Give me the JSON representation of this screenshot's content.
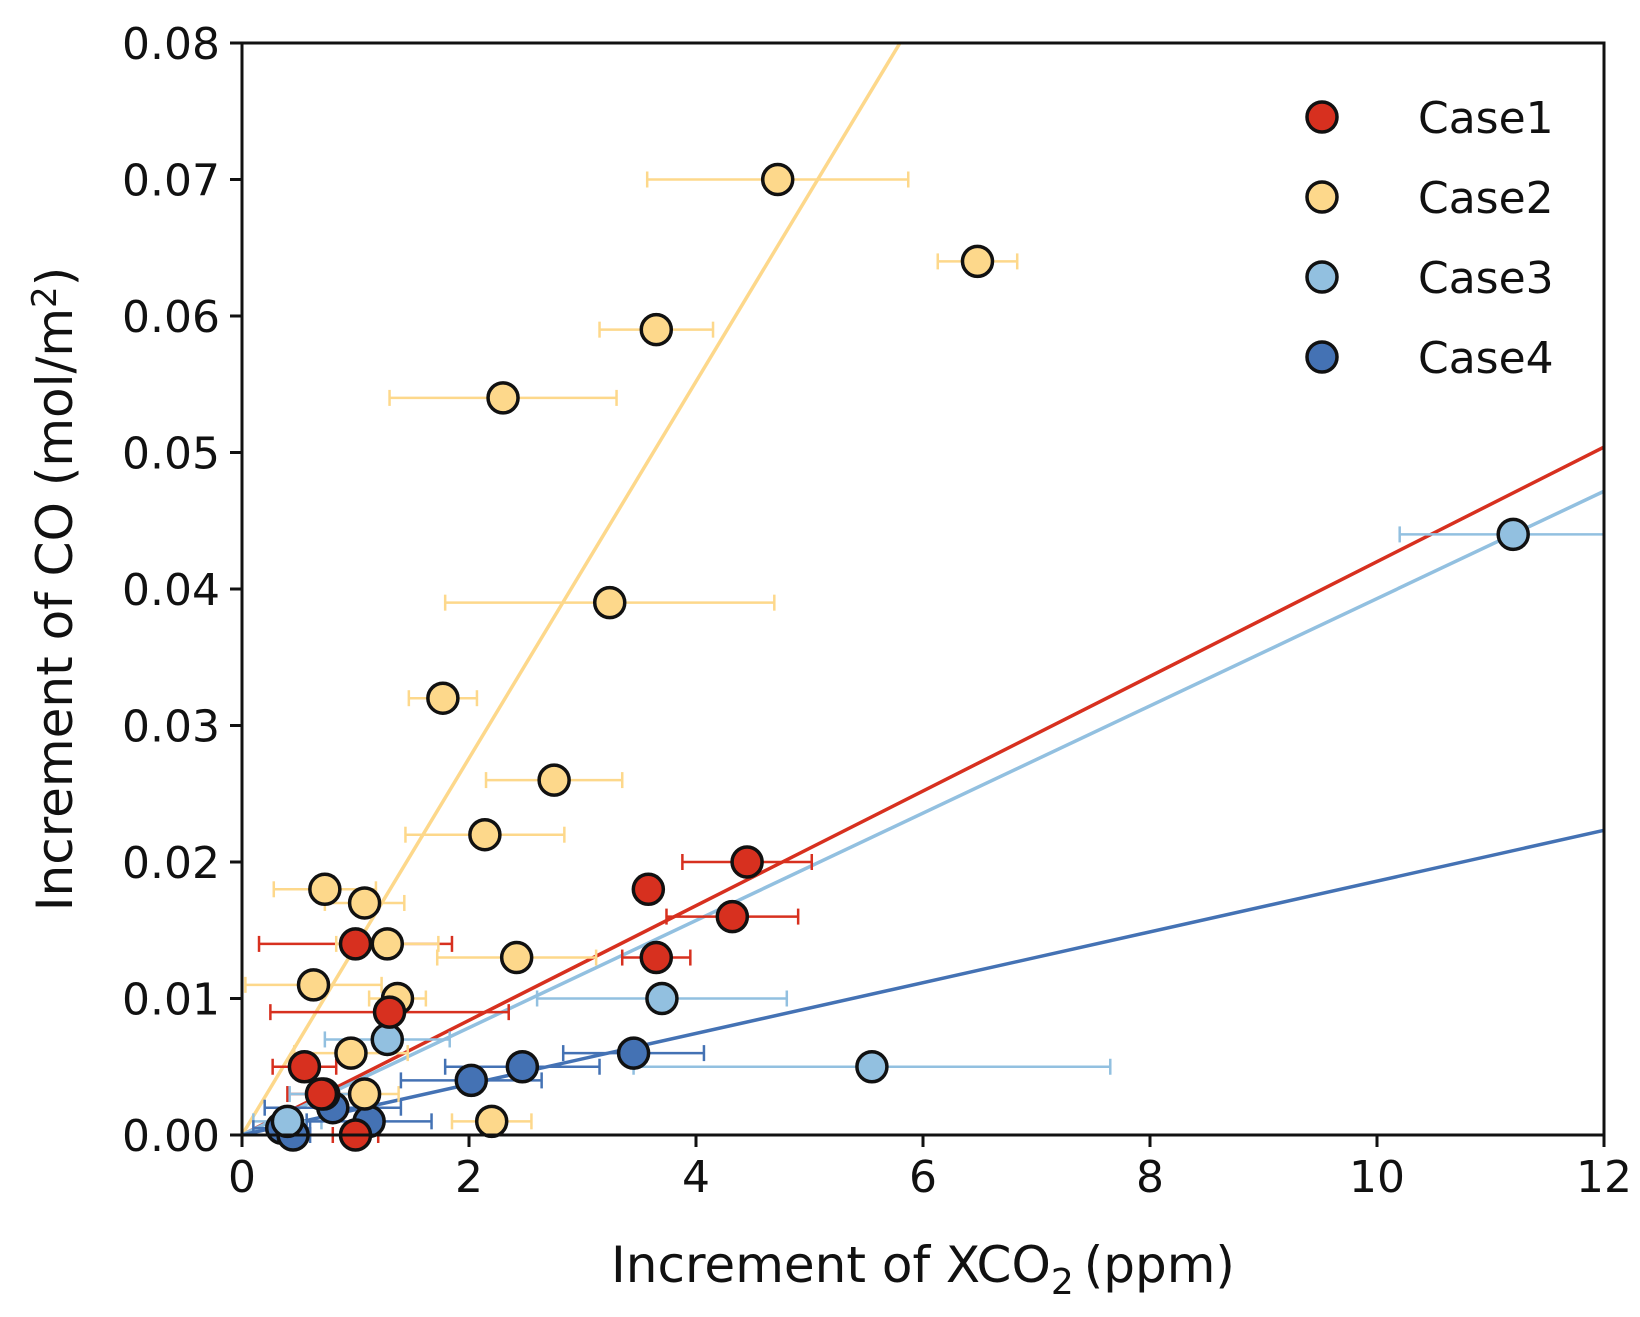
{
  "chart_data": {
    "type": "scatter",
    "title": "",
    "xlabel_main": "Increment of XCO",
    "xlabel_sub": "2",
    "xlabel_unit": "(ppm)",
    "ylabel_main": "Increment of CO (mol/m",
    "ylabel_sup": "2",
    "ylabel_close": ")",
    "xlim": [
      0,
      12
    ],
    "ylim": [
      0,
      0.08
    ],
    "x_ticks": [
      0,
      2,
      4,
      6,
      8,
      10,
      12
    ],
    "x_tick_labels": [
      "0",
      "2",
      "4",
      "6",
      "8",
      "10",
      "12"
    ],
    "y_ticks": [
      0,
      0.01,
      0.02,
      0.03,
      0.04,
      0.05,
      0.06,
      0.07,
      0.08
    ],
    "y_tick_labels": [
      "0.00",
      "0.01",
      "0.02",
      "0.03",
      "0.04",
      "0.05",
      "0.06",
      "0.07",
      "0.08"
    ],
    "legend_position": "top-right",
    "series": [
      {
        "name": "Case1",
        "color": "#d7301f",
        "line_color": "#d7301f",
        "slope": 0.0042,
        "points": [
          {
            "x": 0.55,
            "y": 0.005,
            "xerr": 0.28
          },
          {
            "x": 1.0,
            "y": 0.014,
            "xerr": 0.85
          },
          {
            "x": 1.3,
            "y": 0.009,
            "xerr": 1.05
          },
          {
            "x": 0.7,
            "y": 0.003,
            "xerr": 0.3
          },
          {
            "x": 1.0,
            "y": 0.0,
            "xerr": 0.2
          },
          {
            "x": 3.58,
            "y": 0.018,
            "xerr": 0
          },
          {
            "x": 3.65,
            "y": 0.013,
            "xerr": 0.3
          },
          {
            "x": 4.32,
            "y": 0.016,
            "xerr": 0.58
          },
          {
            "x": 4.45,
            "y": 0.02,
            "xerr": 0.57
          }
        ]
      },
      {
        "name": "Case2",
        "color": "#fdd88b",
        "line_color": "#fdd88b",
        "slope": 0.0138,
        "points": [
          {
            "x": 4.72,
            "y": 0.07,
            "xerr": 1.15
          },
          {
            "x": 6.48,
            "y": 0.064,
            "xerr": 0.35
          },
          {
            "x": 3.65,
            "y": 0.059,
            "xerr": 0.5
          },
          {
            "x": 2.3,
            "y": 0.054,
            "xerr": 1.0
          },
          {
            "x": 3.24,
            "y": 0.039,
            "xerr": 1.45
          },
          {
            "x": 1.77,
            "y": 0.032,
            "xerr": 0.3
          },
          {
            "x": 2.75,
            "y": 0.026,
            "xerr": 0.6
          },
          {
            "x": 2.14,
            "y": 0.022,
            "xerr": 0.7
          },
          {
            "x": 0.73,
            "y": 0.018,
            "xerr": 0.45
          },
          {
            "x": 1.08,
            "y": 0.017,
            "xerr": 0.35
          },
          {
            "x": 1.28,
            "y": 0.014,
            "xerr": 0.45
          },
          {
            "x": 2.42,
            "y": 0.013,
            "xerr": 0.7
          },
          {
            "x": 0.63,
            "y": 0.011,
            "xerr": 0.6
          },
          {
            "x": 1.37,
            "y": 0.01,
            "xerr": 0.25
          },
          {
            "x": 0.96,
            "y": 0.006,
            "xerr": 0.5
          },
          {
            "x": 1.08,
            "y": 0.003,
            "xerr": 0.3
          },
          {
            "x": 2.2,
            "y": 0.001,
            "xerr": 0.35
          }
        ]
      },
      {
        "name": "Case3",
        "color": "#92c0e0",
        "line_color": "#92c0e0",
        "slope": 0.00393,
        "points": [
          {
            "x": 11.2,
            "y": 0.044,
            "xerr": 1.0
          },
          {
            "x": 3.7,
            "y": 0.01,
            "xerr": 1.1
          },
          {
            "x": 1.28,
            "y": 0.007,
            "xerr": 0.55
          },
          {
            "x": 5.55,
            "y": 0.005,
            "xerr": 2.1
          },
          {
            "x": 0.72,
            "y": 0.003,
            "xerr": 0.3
          },
          {
            "x": 0.4,
            "y": 0.001,
            "xerr": 0.3
          }
        ]
      },
      {
        "name": "Case4",
        "color": "#4472b4",
        "line_color": "#4472b4",
        "slope": 0.00186,
        "points": [
          {
            "x": 3.45,
            "y": 0.006,
            "xerr": 0.62
          },
          {
            "x": 2.47,
            "y": 0.005,
            "xerr": 0.68
          },
          {
            "x": 2.02,
            "y": 0.004,
            "xerr": 0.62
          },
          {
            "x": 0.8,
            "y": 0.002,
            "xerr": 0.6
          },
          {
            "x": 1.12,
            "y": 0.001,
            "xerr": 0.55
          },
          {
            "x": 0.35,
            "y": 0.0005,
            "xerr": 0.25
          },
          {
            "x": 0.45,
            "y": 0.0,
            "xerr": 0.15
          }
        ]
      }
    ]
  }
}
